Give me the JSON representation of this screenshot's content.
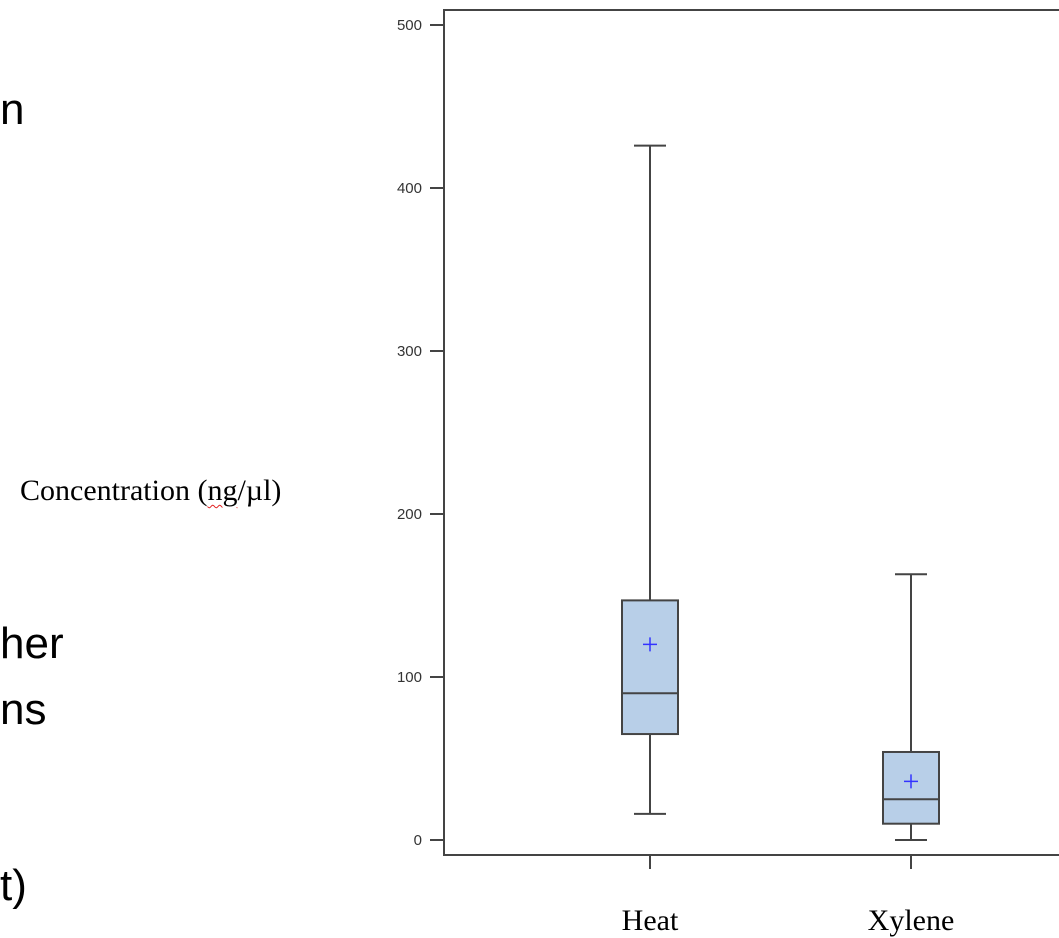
{
  "slide_fragments": [
    "n",
    "her",
    "ns",
    "t)"
  ],
  "chart_data": {
    "type": "box",
    "ylabel_parts": [
      "Concentration (",
      "ng",
      "/µl)"
    ],
    "ylim": [
      0,
      500
    ],
    "y_ticks": [
      0,
      100,
      200,
      300,
      400,
      500
    ],
    "categories": [
      "Heat",
      "Xylene"
    ],
    "boxes": [
      {
        "category": "Heat",
        "min": 16,
        "q1": 65,
        "median": 90,
        "q3": 147,
        "max": 426,
        "mean": 120
      },
      {
        "category": "Xylene",
        "min": 0,
        "q1": 10,
        "median": 25,
        "q3": 54,
        "max": 163,
        "mean": 36
      }
    ],
    "colors": {
      "box_fill": "#b8cfe8",
      "box_stroke": "#444444",
      "mean_marker": "#3333ff",
      "axis": "#444444"
    },
    "grid": false,
    "legend": "none"
  }
}
